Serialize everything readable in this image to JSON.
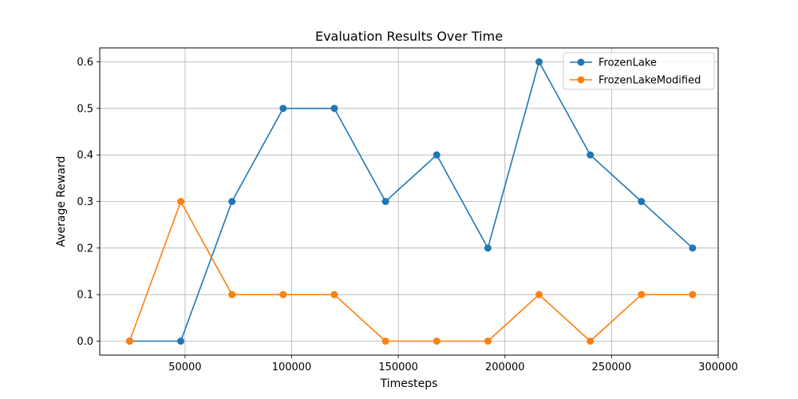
{
  "chart_data": {
    "type": "line",
    "title": "Evaluation Results Over Time",
    "xlabel": "Timesteps",
    "ylabel": "Average Reward",
    "xlim": [
      10000,
      300000
    ],
    "ylim": [
      -0.03,
      0.63
    ],
    "xticks": [
      50000,
      100000,
      150000,
      200000,
      250000,
      300000
    ],
    "xtick_labels": [
      "50000",
      "100000",
      "150000",
      "200000",
      "250000",
      "300000"
    ],
    "yticks": [
      0.0,
      0.1,
      0.2,
      0.3,
      0.4,
      0.5,
      0.6
    ],
    "ytick_labels": [
      "0.0",
      "0.1",
      "0.2",
      "0.3",
      "0.4",
      "0.5",
      "0.6"
    ],
    "grid": true,
    "legend_position": "top-right",
    "x": [
      24000,
      48000,
      72000,
      96000,
      120000,
      144000,
      168000,
      192000,
      216000,
      240000,
      264000,
      288000
    ],
    "series": [
      {
        "name": "FrozenLake",
        "color": "#1f77b4",
        "values": [
          0.0,
          0.0,
          0.3,
          0.5,
          0.5,
          0.3,
          0.4,
          0.2,
          0.6,
          0.4,
          0.3,
          0.2
        ]
      },
      {
        "name": "FrozenLakeModified",
        "color": "#ff7f0e",
        "values": [
          0.0,
          0.3,
          0.1,
          0.1,
          0.1,
          0.0,
          0.0,
          0.0,
          0.1,
          0.0,
          0.1,
          0.1
        ]
      }
    ]
  }
}
